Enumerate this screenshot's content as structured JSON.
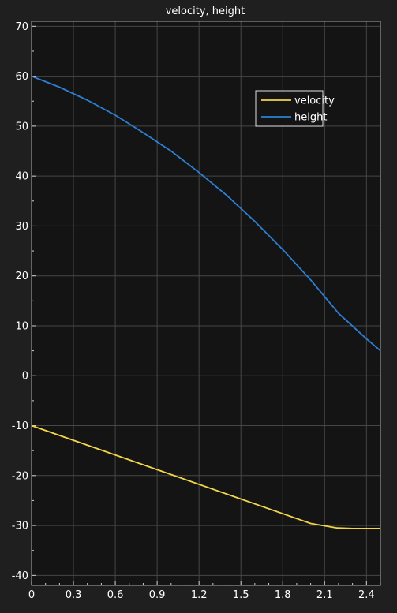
{
  "chart_data": {
    "type": "line",
    "title": "velocity, height",
    "xlim": [
      0,
      2.5
    ],
    "ylim": [
      -42,
      71
    ],
    "xticks": [
      0,
      0.3,
      0.6,
      0.9,
      1.2,
      1.5,
      1.8,
      2.1,
      2.4
    ],
    "xtick_labels": [
      "0",
      "0.3",
      "0.6",
      "0.9",
      "1.2",
      "1.5",
      "1.8",
      "2.1",
      "2.4"
    ],
    "yticks": [
      70,
      60,
      50,
      40,
      30,
      20,
      10,
      0,
      -10,
      -20,
      -30,
      -40
    ],
    "ytick_labels": [
      "70",
      "60",
      "50",
      "40",
      "30",
      "20",
      "10",
      "0",
      "-10",
      "-20",
      "-30",
      "-40"
    ],
    "grid": true,
    "legend_position": "top-right",
    "series": [
      {
        "name": "velocity",
        "color": "#f3d648",
        "x": [
          0,
          0.5,
          1.0,
          1.5,
          2.0,
          2.19,
          2.3,
          2.4,
          2.5
        ],
        "y": [
          -10,
          -14.9,
          -19.8,
          -24.7,
          -29.6,
          -30.5,
          -30.6,
          -30.6,
          -30.6
        ]
      },
      {
        "name": "height",
        "color": "#2d7fd1",
        "x": [
          0,
          0.2,
          0.4,
          0.6,
          0.8,
          1.0,
          1.2,
          1.4,
          1.6,
          1.8,
          2.0,
          2.2,
          2.4,
          2.5
        ],
        "y": [
          60,
          57.8,
          55.2,
          52.2,
          48.7,
          45.0,
          40.7,
          36.1,
          30.9,
          25.3,
          19.2,
          12.5,
          7.4,
          5.0
        ]
      }
    ]
  }
}
